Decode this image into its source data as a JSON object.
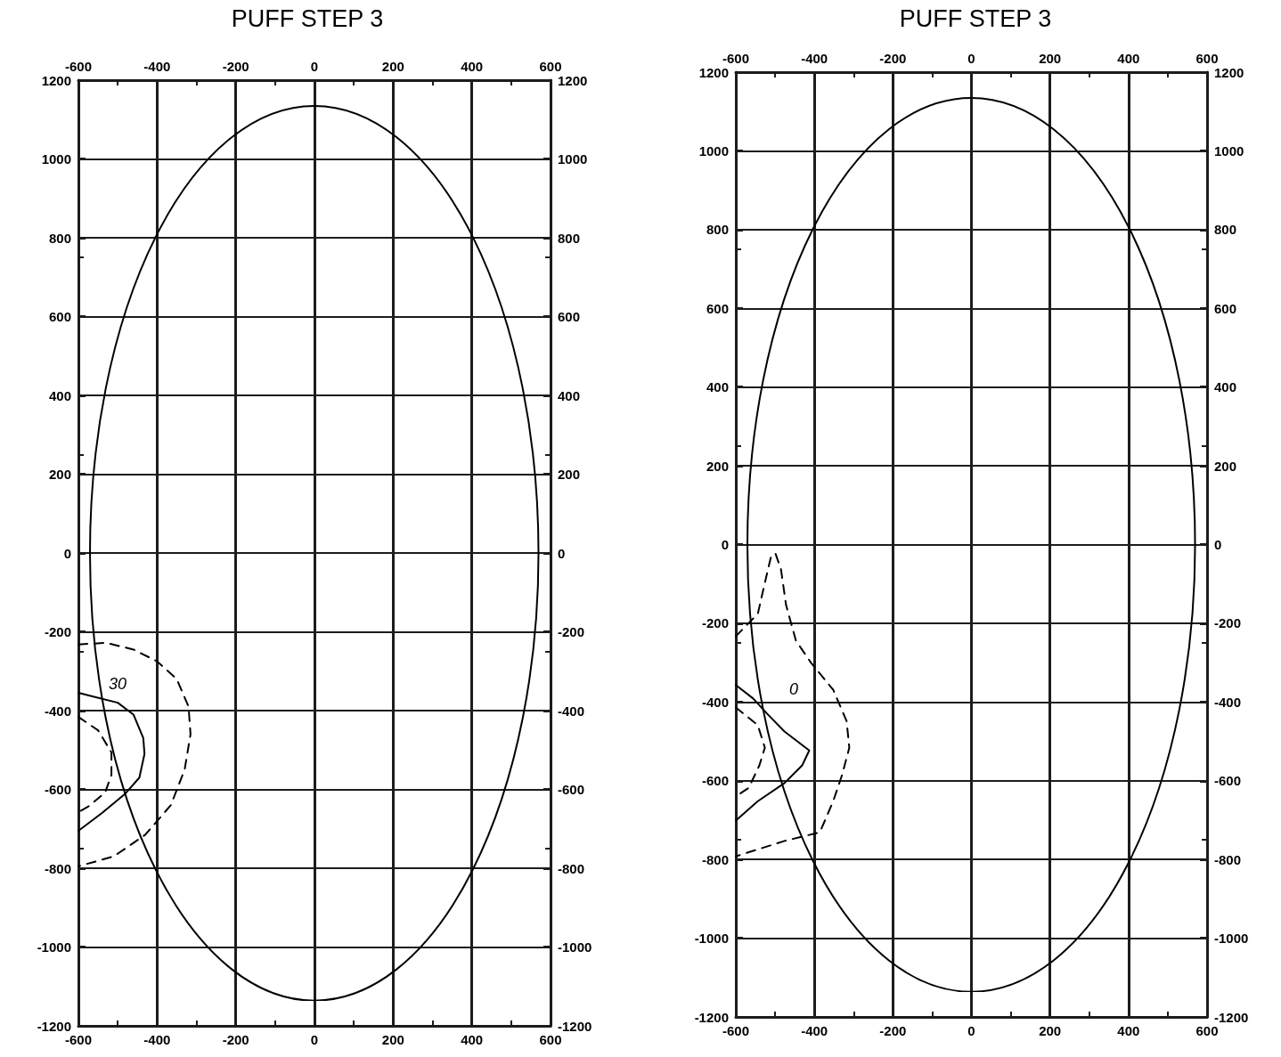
{
  "chart_data": [
    {
      "type": "line",
      "title": "PUFF STEP 3",
      "xlim": [
        -600,
        600
      ],
      "xticks": [
        -600,
        -400,
        -200,
        0,
        200,
        400,
        600
      ],
      "x2lim": [
        -600,
        600
      ],
      "x2ticks": [
        -600,
        -400,
        -200,
        0,
        200,
        400,
        600
      ],
      "ylim": [
        -1200,
        1200
      ],
      "yticks": [
        -1200,
        -1000,
        -800,
        -600,
        -400,
        -200,
        0,
        200,
        400,
        600,
        800,
        1000,
        1200
      ],
      "y2lim": [
        -1200,
        1200
      ],
      "y2ticks": [
        -1200,
        -1000,
        -800,
        -600,
        -400,
        -200,
        0,
        200,
        400,
        600,
        800,
        1000,
        1200
      ],
      "grid": true,
      "marker": "none",
      "annotations": [
        "30"
      ],
      "series": [
        {
          "color": "#000000",
          "line_style": "solid",
          "x": [
            -600,
            -560,
            -500,
            -460,
            -435,
            -432,
            -445,
            -480,
            -540,
            -600
          ],
          "values": [
            -355,
            -365,
            -380,
            -410,
            -470,
            -510,
            -570,
            -610,
            -660,
            -705
          ]
        },
        {
          "color": "#000000",
          "line_style": "dashed",
          "x": [
            -600,
            -530,
            -460,
            -400,
            -350,
            -320,
            -315,
            -330,
            -365,
            -430,
            -510,
            -600
          ],
          "values": [
            -232,
            -228,
            -245,
            -275,
            -320,
            -390,
            -460,
            -550,
            -640,
            -715,
            -770,
            -795
          ]
        },
        {
          "color": "#000000",
          "line_style": "dashed",
          "x": [
            -600,
            -550,
            -516,
            -516,
            -532,
            -573,
            -600
          ],
          "values": [
            -416,
            -450,
            -506,
            -563,
            -608,
            -642,
            -658
          ]
        }
      ]
    },
    {
      "type": "line",
      "title": "PUFF STEP 3",
      "xlim": [
        -600,
        600
      ],
      "xticks": [
        -600,
        -400,
        -200,
        0,
        200,
        400,
        600
      ],
      "x2lim": [
        -600,
        600
      ],
      "x2ticks": [
        -600,
        -400,
        -200,
        0,
        200,
        400,
        600
      ],
      "ylim": [
        -1200,
        1200
      ],
      "yticks": [
        -1200,
        -1000,
        -800,
        -600,
        -400,
        -200,
        0,
        200,
        400,
        600,
        800,
        1000,
        1200
      ],
      "y2lim": [
        -1200,
        1200
      ],
      "y2ticks": [
        -1200,
        -1000,
        -800,
        -600,
        -400,
        -200,
        0,
        200,
        400,
        600,
        800,
        1000,
        1200
      ],
      "grid": true,
      "marker": "none",
      "annotations": [
        "0"
      ],
      "series": [
        {
          "color": "#000000",
          "line_style": "solid",
          "x": [
            -600,
            -556,
            -520,
            -476,
            -413,
            -431,
            -476,
            -544,
            -600
          ],
          "values": [
            -357,
            -391,
            -430,
            -475,
            -523,
            -561,
            -606,
            -652,
            -701
          ]
        },
        {
          "color": "#000000",
          "line_style": "dashed",
          "x": [
            -600,
            -544,
            -526,
            -510,
            -499,
            -485,
            -472,
            -447,
            -408,
            -352,
            -318,
            -311,
            -329,
            -352,
            -386,
            -476,
            -600
          ],
          "values": [
            -233,
            -176,
            -97,
            -29,
            -23,
            -63,
            -154,
            -244,
            -301,
            -369,
            -448,
            -516,
            -584,
            -652,
            -731,
            -753,
            -792
          ]
        },
        {
          "color": "#000000",
          "line_style": "dashed",
          "x": [
            -600,
            -544,
            -526,
            -540,
            -567,
            -600
          ],
          "values": [
            -414,
            -459,
            -516,
            -561,
            -618,
            -640
          ]
        }
      ]
    }
  ]
}
